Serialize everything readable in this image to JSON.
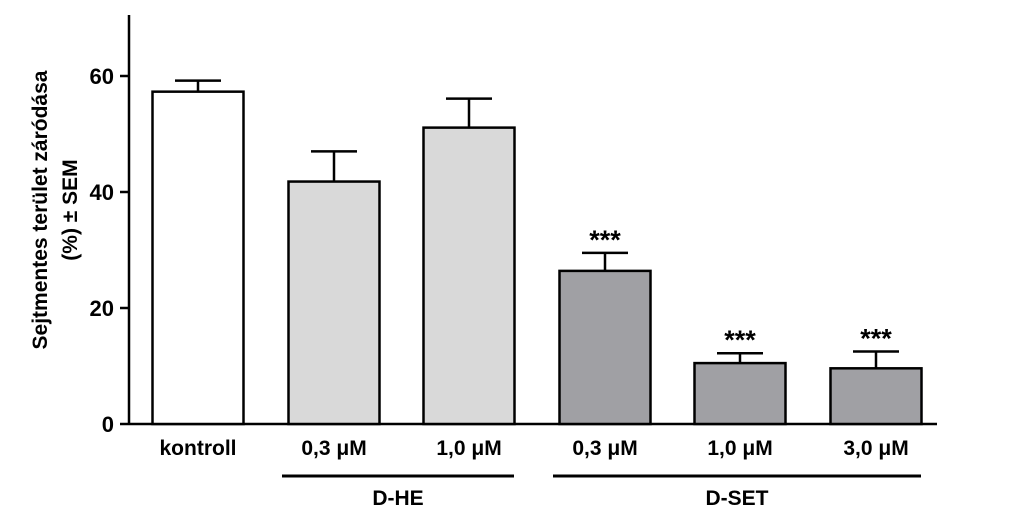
{
  "chart_data": {
    "type": "bar",
    "ylabel_line1": "Sejtmentes terület záródása",
    "ylabel_line2": "(%) ± SEM",
    "ylim": [
      0,
      70
    ],
    "yticks": [
      0,
      20,
      40,
      60
    ],
    "categories": [
      "kontroll",
      "0,3 μM",
      "1,0 μM",
      "0,3 μM",
      "1,0 μM",
      "3,0 μM"
    ],
    "values": [
      57.3,
      41.8,
      51.1,
      26.4,
      10.5,
      9.6
    ],
    "sem": [
      1.9,
      5.2,
      5.0,
      3.1,
      1.7,
      2.9
    ],
    "significance": [
      "",
      "",
      "",
      "***",
      "***",
      "***"
    ],
    "groups": [
      {
        "name": "D-HE",
        "category_indices": [
          1,
          2
        ]
      },
      {
        "name": "D-SET",
        "category_indices": [
          3,
          4,
          5
        ]
      }
    ],
    "bar_colors": [
      "#ffffff",
      "#d9d9d9",
      "#d9d9d9",
      "#a0a0a4",
      "#a0a0a4",
      "#a0a0a4"
    ]
  }
}
